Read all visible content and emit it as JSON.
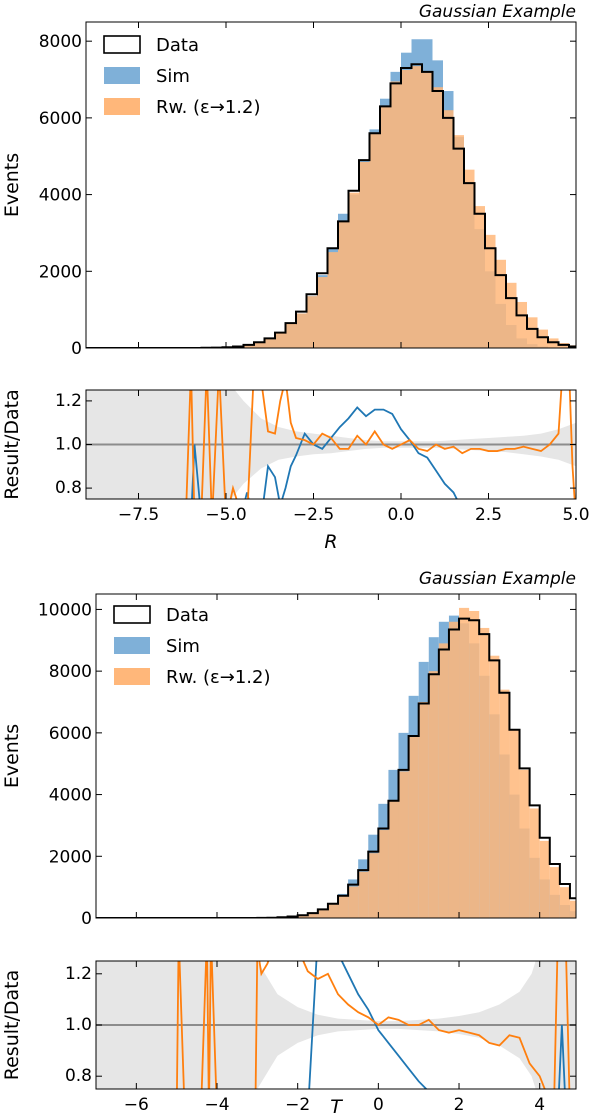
{
  "colors": {
    "data": "#000000",
    "sim": "#1f77b4",
    "rw": "#ff7f0e",
    "sim_fill": "#7fb0d8",
    "rw_fill": "#ffb77a",
    "band": "#e6e6e6",
    "unity": "#8c8c8c"
  },
  "chart_data": [
    {
      "type": "histogram",
      "title": "Gaussian Example",
      "xlabel": "R",
      "ylabel": "Events",
      "ratio_ylabel": "Result/Data",
      "xlim": [
        -9.0,
        5.0
      ],
      "ylim": [
        0,
        8500
      ],
      "yticks": [
        "0",
        "2000",
        "4000",
        "6000",
        "8000"
      ],
      "ytick_values": [
        0,
        2000,
        4000,
        6000,
        8000
      ],
      "xticks": [
        "−7.5",
        "−5.0",
        "−2.5",
        "0.0",
        "2.5",
        "5.0"
      ],
      "xtick_values": [
        -7.5,
        -5.0,
        -2.5,
        0.0,
        2.5,
        5.0
      ],
      "ratio_ylim": [
        0.75,
        1.25
      ],
      "ratio_yticks": [
        "0.8",
        "1.0",
        "1.2"
      ],
      "ratio_ytick_values": [
        0.8,
        1.0,
        1.2
      ],
      "legend": [
        "Data",
        "Sim",
        "Rw. (ε→1.2)"
      ],
      "bin_edges_start": -9.0,
      "bin_width": 0.3,
      "series": [
        {
          "name": "Data",
          "values": [
            0,
            0,
            0,
            0,
            0,
            0,
            0,
            0,
            0,
            0,
            0,
            5,
            10,
            20,
            40,
            80,
            150,
            250,
            400,
            650,
            950,
            1400,
            1950,
            2600,
            3300,
            4100,
            4900,
            5600,
            6300,
            6900,
            7300,
            7400,
            7200,
            6700,
            6000,
            5200,
            4300,
            3500,
            2600,
            1900,
            1300,
            850,
            500,
            280,
            150,
            80,
            40
          ]
        },
        {
          "name": "Sim",
          "values": [
            0,
            0,
            0,
            0,
            0,
            0,
            0,
            0,
            0,
            0,
            0,
            5,
            10,
            20,
            40,
            70,
            130,
            220,
            360,
            600,
            900,
            1350,
            1900,
            2600,
            3500,
            4000,
            4900,
            5700,
            6500,
            7200,
            7700,
            8050,
            8050,
            7500,
            6700,
            5500,
            4300,
            3100,
            2000,
            1150,
            600,
            250,
            100,
            40,
            10,
            5,
            0
          ]
        },
        {
          "name": "Rw. (ε→1.2)",
          "values": [
            0,
            0,
            0,
            0,
            0,
            0,
            0,
            0,
            0,
            0,
            0,
            5,
            10,
            20,
            40,
            80,
            150,
            250,
            400,
            650,
            900,
            1350,
            1850,
            2500,
            3300,
            4050,
            4850,
            5600,
            6300,
            6950,
            7250,
            7350,
            7200,
            6800,
            6200,
            5550,
            4650,
            3700,
            2950,
            2300,
            1700,
            1200,
            800,
            480,
            250,
            130,
            70
          ]
        }
      ],
      "ratio_x": [
        -6.3,
        -6.15,
        -6.0,
        -5.9,
        -5.7,
        -5.55,
        -5.4,
        -5.2,
        -5.0,
        -4.8,
        -4.6,
        -4.4,
        -4.2,
        -4.0,
        -3.8,
        -3.6,
        -3.45,
        -3.3,
        -3.15,
        -3.0,
        -2.75,
        -2.5,
        -2.25,
        -2.0,
        -1.75,
        -1.5,
        -1.25,
        -1.0,
        -0.75,
        -0.5,
        -0.25,
        0.0,
        0.25,
        0.5,
        0.75,
        1.0,
        1.25,
        1.5,
        1.75,
        2.0,
        2.25,
        2.5,
        2.75,
        3.0,
        3.25,
        3.5,
        3.75,
        4.0,
        4.25,
        4.5,
        4.6,
        4.7,
        4.8,
        4.9,
        5.0
      ],
      "ratio_sim": [
        0.7,
        0.6,
        0.5,
        1.0,
        0.6,
        0.5,
        0.5,
        0.5,
        0.5,
        0.5,
        0.65,
        0.78,
        0.6,
        0.5,
        0.9,
        0.85,
        0.72,
        0.8,
        0.9,
        0.95,
        1.05,
        1.0,
        0.98,
        1.03,
        1.08,
        1.12,
        1.17,
        1.13,
        1.16,
        1.16,
        1.14,
        1.07,
        1.02,
        0.96,
        0.94,
        0.88,
        0.82,
        0.78,
        0.7,
        0.62,
        0.55,
        0.5,
        0.5,
        0.5,
        0.5,
        0.5,
        0.5,
        0.5,
        0.5,
        0.5,
        0.5,
        0.5,
        0.5,
        0.5,
        0.5
      ],
      "ratio_rw": [
        0.7,
        0.6,
        1.6,
        0.6,
        0.7,
        1.6,
        0.5,
        1.6,
        0.5,
        0.8,
        0.7,
        0.6,
        1.6,
        1.3,
        1.06,
        1.05,
        1.2,
        1.3,
        1.1,
        1.03,
        1.02,
        1.0,
        1.05,
        1.03,
        0.98,
        0.98,
        1.04,
        1.0,
        1.06,
        1.0,
        0.98,
        1.0,
        1.02,
        0.98,
        0.97,
        1.0,
        0.98,
        0.99,
        0.96,
        0.98,
        0.98,
        0.97,
        0.97,
        0.98,
        0.98,
        0.99,
        0.98,
        0.97,
        1.0,
        1.05,
        1.3,
        1.6,
        1.5,
        0.9,
        0.5
      ],
      "band_x": [
        -9.0,
        -6.5,
        -6.0,
        -5.5,
        -5.0,
        -4.5,
        -4.0,
        -3.5,
        -3.0,
        -2.5,
        -2.0,
        -1.5,
        -1.0,
        -0.5,
        0.0,
        0.5,
        1.0,
        1.5,
        2.0,
        2.5,
        3.0,
        3.5,
        4.0,
        4.5,
        5.0
      ],
      "band_up": [
        1.6,
        1.6,
        1.6,
        1.5,
        1.3,
        1.2,
        1.12,
        1.08,
        1.06,
        1.05,
        1.04,
        1.03,
        1.02,
        1.015,
        1.015,
        1.015,
        1.015,
        1.02,
        1.025,
        1.03,
        1.035,
        1.04,
        1.05,
        1.07,
        1.1
      ],
      "band_down": [
        0.4,
        0.4,
        0.4,
        0.5,
        0.72,
        0.82,
        0.89,
        0.93,
        0.945,
        0.955,
        0.96,
        0.97,
        0.98,
        0.985,
        0.985,
        0.985,
        0.985,
        0.98,
        0.975,
        0.97,
        0.965,
        0.955,
        0.945,
        0.93,
        0.9
      ]
    },
    {
      "type": "histogram",
      "title": "Gaussian Example",
      "xlabel": "T",
      "ylabel": "Events",
      "ratio_ylabel": "Result/Data",
      "xlim": [
        -7.0,
        4.9
      ],
      "ylim": [
        0,
        10500
      ],
      "yticks": [
        "0",
        "2000",
        "4000",
        "6000",
        "8000",
        "10000"
      ],
      "ytick_values": [
        0,
        2000,
        4000,
        6000,
        8000,
        10000
      ],
      "xticks": [
        "−6",
        "−4",
        "−2",
        "0",
        "2",
        "4"
      ],
      "xtick_values": [
        -6,
        -4,
        -2,
        0,
        2,
        4
      ],
      "ratio_ylim": [
        0.75,
        1.25
      ],
      "ratio_yticks": [
        "0.8",
        "1.0",
        "1.2"
      ],
      "ratio_ytick_values": [
        0.8,
        1.0,
        1.2
      ],
      "legend": [
        "Data",
        "Sim",
        "Rw. (ε→1.2)"
      ],
      "bin_edges_start": -7.0,
      "bin_width": 0.25,
      "series": [
        {
          "name": "Data",
          "values": [
            0,
            0,
            0,
            0,
            0,
            0,
            0,
            0,
            0,
            0,
            0,
            0,
            0,
            0,
            0,
            0,
            5,
            10,
            25,
            50,
            90,
            160,
            280,
            460,
            720,
            1080,
            1550,
            2150,
            2900,
            3800,
            4800,
            5900,
            6950,
            7900,
            8700,
            9350,
            9700,
            9650,
            9200,
            8350,
            7300,
            6100,
            4850,
            3650,
            2600,
            1750,
            1100,
            640,
            350,
            180,
            85,
            40
          ]
        },
        {
          "name": "Sim",
          "values": [
            0,
            0,
            0,
            0,
            0,
            0,
            0,
            0,
            0,
            0,
            0,
            0,
            0,
            0,
            0,
            0,
            5,
            10,
            25,
            45,
            80,
            150,
            270,
            470,
            780,
            1250,
            1900,
            2700,
            3700,
            4800,
            6000,
            7200,
            8300,
            9100,
            9600,
            9800,
            9550,
            8900,
            7850,
            6600,
            5300,
            4000,
            2900,
            1950,
            1250,
            750,
            420,
            220,
            110,
            50,
            20,
            8
          ]
        },
        {
          "name": "Rw. (ε→1.2)",
          "values": [
            0,
            0,
            0,
            0,
            0,
            0,
            0,
            0,
            0,
            0,
            0,
            0,
            0,
            0,
            0,
            0,
            5,
            10,
            25,
            45,
            85,
            150,
            260,
            440,
            700,
            1020,
            1500,
            2100,
            2850,
            3800,
            4750,
            5900,
            7000,
            8000,
            8900,
            9600,
            10050,
            9950,
            9400,
            8500,
            7400,
            6100,
            4800,
            3550,
            2500,
            1650,
            1000,
            560,
            290,
            140,
            60,
            25
          ]
        }
      ],
      "ratio_x": [
        -5.5,
        -5.2,
        -5.0,
        -4.95,
        -4.8,
        -4.6,
        -4.4,
        -4.25,
        -4.2,
        -4.15,
        -4.0,
        -3.8,
        -3.6,
        -3.4,
        -3.2,
        -3.05,
        -3.0,
        -2.9,
        -2.75,
        -2.5,
        -2.25,
        -2.0,
        -1.75,
        -1.5,
        -1.25,
        -1.0,
        -0.75,
        -0.5,
        -0.25,
        0.0,
        0.25,
        0.5,
        0.75,
        1.0,
        1.25,
        1.5,
        1.75,
        2.0,
        2.25,
        2.5,
        2.75,
        3.0,
        3.25,
        3.5,
        3.75,
        4.0,
        4.25,
        4.35,
        4.45,
        4.55,
        4.65,
        4.75
      ],
      "ratio_sim": [
        0.5,
        0.5,
        0.5,
        0.5,
        0.5,
        0.5,
        0.5,
        0.5,
        0.5,
        0.5,
        0.5,
        0.5,
        0.5,
        0.5,
        0.5,
        0.5,
        0.5,
        0.5,
        0.5,
        0.5,
        0.5,
        0.5,
        0.5,
        1.5,
        1.4,
        1.28,
        1.2,
        1.12,
        1.06,
        0.98,
        0.93,
        0.88,
        0.83,
        0.78,
        0.74,
        0.7,
        0.66,
        0.62,
        0.58,
        0.55,
        0.5,
        0.5,
        0.5,
        0.5,
        0.5,
        0.5,
        0.5,
        0.5,
        0.5,
        1.0,
        0.5,
        0.5
      ],
      "ratio_rw": [
        0.5,
        0.5,
        0.5,
        1.6,
        0.5,
        0.5,
        0.5,
        1.6,
        0.5,
        1.6,
        0.5,
        0.5,
        0.5,
        0.5,
        0.5,
        0.5,
        1.3,
        1.2,
        1.24,
        1.5,
        1.35,
        1.3,
        1.21,
        1.18,
        1.2,
        1.12,
        1.08,
        1.05,
        1.03,
        1.0,
        1.03,
        1.02,
        1.0,
        1.0,
        1.02,
        0.98,
        0.97,
        0.98,
        0.97,
        0.96,
        0.93,
        0.92,
        0.96,
        0.95,
        0.85,
        0.8,
        0.7,
        0.5,
        1.6,
        1.5,
        1.3,
        0.5
      ],
      "band_x": [
        -7.0,
        -6.0,
        -5.0,
        -4.0,
        -3.5,
        -3.0,
        -2.5,
        -2.0,
        -1.5,
        -1.0,
        -0.5,
        0.0,
        0.5,
        1.0,
        1.5,
        2.0,
        2.5,
        3.0,
        3.5,
        3.8,
        4.0,
        4.3,
        4.6,
        4.9
      ],
      "band_up": [
        1.6,
        1.6,
        1.6,
        1.6,
        1.4,
        1.25,
        1.12,
        1.07,
        1.04,
        1.025,
        1.02,
        1.015,
        1.015,
        1.02,
        1.025,
        1.035,
        1.05,
        1.08,
        1.13,
        1.2,
        1.3,
        1.45,
        1.6,
        1.6
      ],
      "band_down": [
        0.4,
        0.4,
        0.4,
        0.4,
        0.6,
        0.75,
        0.88,
        0.93,
        0.96,
        0.975,
        0.98,
        0.985,
        0.985,
        0.98,
        0.975,
        0.965,
        0.95,
        0.92,
        0.87,
        0.8,
        0.7,
        0.55,
        0.4,
        0.4
      ]
    }
  ]
}
